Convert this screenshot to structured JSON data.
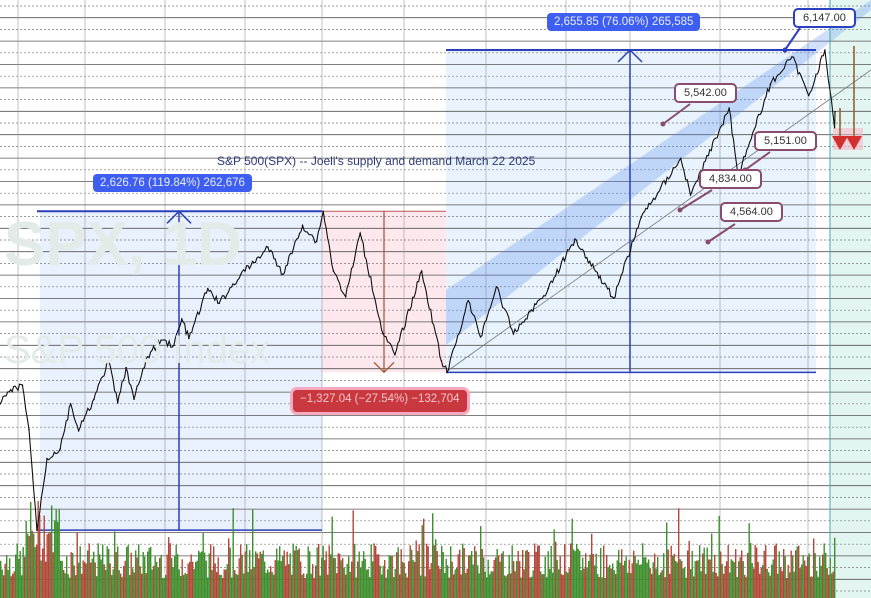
{
  "watermark": {
    "symbol_line": "SPX, 1D",
    "name_line": "S&P 500 Index"
  },
  "colors": {
    "measure_blue": "#3d5ef0",
    "measure_red": "#c9383f",
    "channel": "#5b8def",
    "price": "#111111",
    "volume_up": "#3f8f2f",
    "volume_down": "#b5473a",
    "arrow_red": "#d32f2f"
  },
  "chart_data": {
    "type": "line",
    "title": "S&P 500(SPX) -- Joeli's supply and demand March 22 2025",
    "series": [
      {
        "points": [
          [
            "2019-12-30",
            3230
          ],
          [
            "2020-01-20",
            3330
          ],
          [
            "2020-02-19",
            3386
          ],
          [
            "2020-03-05",
            3020
          ],
          [
            "2020-03-23",
            2191
          ],
          [
            "2020-04-15",
            2780
          ],
          [
            "2020-05-15",
            2860
          ],
          [
            "2020-06-08",
            3230
          ],
          [
            "2020-06-26",
            3010
          ],
          [
            "2020-07-31",
            3270
          ],
          [
            "2020-09-02",
            3580
          ],
          [
            "2020-09-23",
            3240
          ],
          [
            "2020-10-12",
            3530
          ],
          [
            "2020-10-30",
            3270
          ],
          [
            "2020-11-30",
            3620
          ],
          [
            "2020-12-31",
            3756
          ],
          [
            "2021-01-29",
            3714
          ],
          [
            "2021-02-16",
            3930
          ],
          [
            "2021-03-04",
            3770
          ],
          [
            "2021-04-16",
            4180
          ],
          [
            "2021-05-12",
            4060
          ],
          [
            "2021-06-30",
            4297
          ],
          [
            "2021-07-30",
            4395
          ],
          [
            "2021-08-31",
            4522
          ],
          [
            "2021-10-04",
            4300
          ],
          [
            "2021-11-18",
            4700
          ],
          [
            "2021-12-20",
            4570
          ],
          [
            "2022-01-04",
            4818
          ],
          [
            "2022-01-27",
            4326
          ],
          [
            "2022-02-24",
            4114
          ],
          [
            "2022-03-29",
            4637
          ],
          [
            "2022-05-20",
            3810
          ],
          [
            "2022-06-16",
            3636
          ],
          [
            "2022-08-16",
            4325
          ],
          [
            "2022-09-30",
            3585
          ],
          [
            "2022-10-13",
            3491
          ],
          [
            "2022-11-30",
            4080
          ],
          [
            "2022-12-28",
            3783
          ],
          [
            "2023-02-02",
            4195
          ],
          [
            "2023-03-13",
            3808
          ],
          [
            "2023-05-31",
            4180
          ],
          [
            "2023-07-31",
            4589
          ],
          [
            "2023-10-27",
            4103
          ],
          [
            "2023-12-29",
            4770
          ],
          [
            "2024-03-28",
            5254
          ],
          [
            "2024-04-19",
            4953
          ],
          [
            "2024-07-16",
            5669
          ],
          [
            "2024-08-05",
            5119
          ],
          [
            "2024-10-18",
            5865
          ],
          [
            "2024-12-06",
            6090
          ],
          [
            "2025-01-13",
            5773
          ],
          [
            "2025-02-19",
            6147
          ],
          [
            "2025-03-13",
            5504
          ],
          [
            "2025-03-14",
            5638
          ]
        ]
      }
    ],
    "measurements": [
      {
        "label": "2,626.76 (119.84%) 262,676",
        "from": 2191,
        "to": 4818,
        "direction": "up"
      },
      {
        "label": "−1,327.04 (−27.54%) −132,704",
        "from": 4818,
        "to": 3491,
        "direction": "down"
      },
      {
        "label": "2,655.85 (76.06%) 265,585",
        "from": 3491,
        "to": 6147,
        "direction": "up"
      }
    ],
    "callouts": [
      "6,147.00",
      "5,542.00",
      "5,151.00",
      "4,834.00",
      "4,564.00"
    ],
    "volume": true,
    "grid": true,
    "legend": "none"
  }
}
